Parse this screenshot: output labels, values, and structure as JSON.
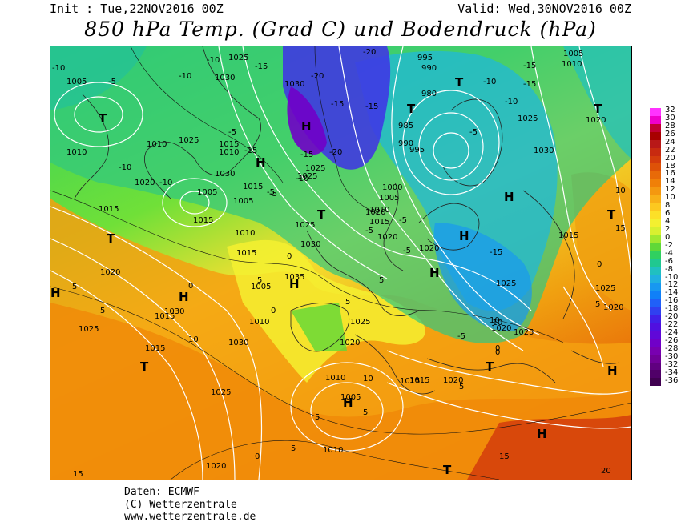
{
  "header": {
    "init": "Init : Tue,22NOV2016 00Z",
    "valid": "Valid: Wed,30NOV2016 00Z",
    "title": "850 hPa Temp. (Grad C) und Bodendruck (hPa)"
  },
  "legend": {
    "values": [
      "32",
      "30",
      "28",
      "26",
      "24",
      "22",
      "20",
      "18",
      "16",
      "14",
      "12",
      "10",
      "8",
      "6",
      "4",
      "2",
      "0",
      "-2",
      "-4",
      "-6",
      "-8",
      "-10",
      "-12",
      "-14",
      "-16",
      "-18",
      "-20",
      "-22",
      "-24",
      "-26",
      "-28",
      "-30",
      "-32",
      "-34",
      "-36"
    ],
    "colors": [
      "#ff33ff",
      "#ee00cc",
      "#c00033",
      "#a80000",
      "#b81818",
      "#c82a10",
      "#d43c0c",
      "#de5208",
      "#e86a08",
      "#f08008",
      "#f49810",
      "#f8b018",
      "#fcc820",
      "#fce028",
      "#f4f030",
      "#d8f030",
      "#a0e830",
      "#60d838",
      "#30d060",
      "#20c890",
      "#20c0c0",
      "#20b0e0",
      "#1898f0",
      "#1080f8",
      "#2060f8",
      "#3040f0",
      "#4020e8",
      "#5010e0",
      "#6008d8",
      "#7000c8",
      "#7800b0",
      "#700098",
      "#600080",
      "#500068",
      "#400050"
    ]
  },
  "map": {
    "pressure_highs": [
      {
        "label": "H"
      },
      {
        "label": "H"
      },
      {
        "label": "H"
      },
      {
        "label": "H"
      },
      {
        "label": "H"
      },
      {
        "label": "H"
      },
      {
        "label": "H"
      },
      {
        "label": "H"
      },
      {
        "label": "H"
      },
      {
        "label": "H"
      },
      {
        "label": "H"
      }
    ],
    "pressure_lows": [
      {
        "label": "T"
      },
      {
        "label": "T"
      },
      {
        "label": "T"
      },
      {
        "label": "T"
      },
      {
        "label": "T"
      },
      {
        "label": "T"
      },
      {
        "label": "T"
      },
      {
        "label": "T"
      },
      {
        "label": "T"
      },
      {
        "label": "T"
      },
      {
        "label": "T"
      }
    ],
    "isobar_labels": [
      "1005",
      "1010",
      "1010",
      "1015",
      "1020",
      "1025",
      "1030",
      "1005",
      "1015",
      "1010",
      "1020",
      "1005",
      "1015",
      "1025",
      "1030",
      "1025",
      "1015",
      "1010",
      "1005",
      "995",
      "990",
      "980",
      "985",
      "990",
      "995",
      "1000",
      "1005",
      "1010",
      "1015",
      "1020",
      "1025",
      "1030",
      "1030",
      "1015",
      "1010",
      "1005",
      "1020",
      "1025",
      "1030",
      "1035",
      "1025",
      "1030",
      "1025",
      "1020",
      "1015",
      "1010",
      "1005",
      "1010",
      "1015",
      "1020",
      "1025",
      "1030",
      "1020",
      "1025",
      "1020",
      "1010",
      "1015",
      "1020",
      "1025",
      "1015",
      "1020",
      "1025",
      "1020",
      "1015",
      "1025"
    ],
    "temp_labels": [
      "-10",
      "-5",
      "-10",
      "-10",
      "-15",
      "-5",
      "-15",
      "-5",
      "-10",
      "-15",
      "-15",
      "-20",
      "-10",
      "-5",
      "-10",
      "-20",
      "-20",
      "-10",
      "-15",
      "-10",
      "-5",
      "-15",
      "-5",
      "-5",
      "-15",
      "-15",
      "-5",
      "-10",
      "0",
      "5",
      "5",
      "0",
      "5",
      "10",
      "5",
      "0",
      "5",
      "10",
      "5",
      "0",
      "5",
      "5",
      "0",
      "-5",
      "0",
      "5",
      "10",
      "15",
      "15",
      "20",
      "10",
      "0",
      "5",
      "15"
    ]
  },
  "credits": {
    "line1": "Daten: ECMWF",
    "line2": "(C) Wetterzentrale",
    "line3": "www.wetterzentrale.de"
  }
}
